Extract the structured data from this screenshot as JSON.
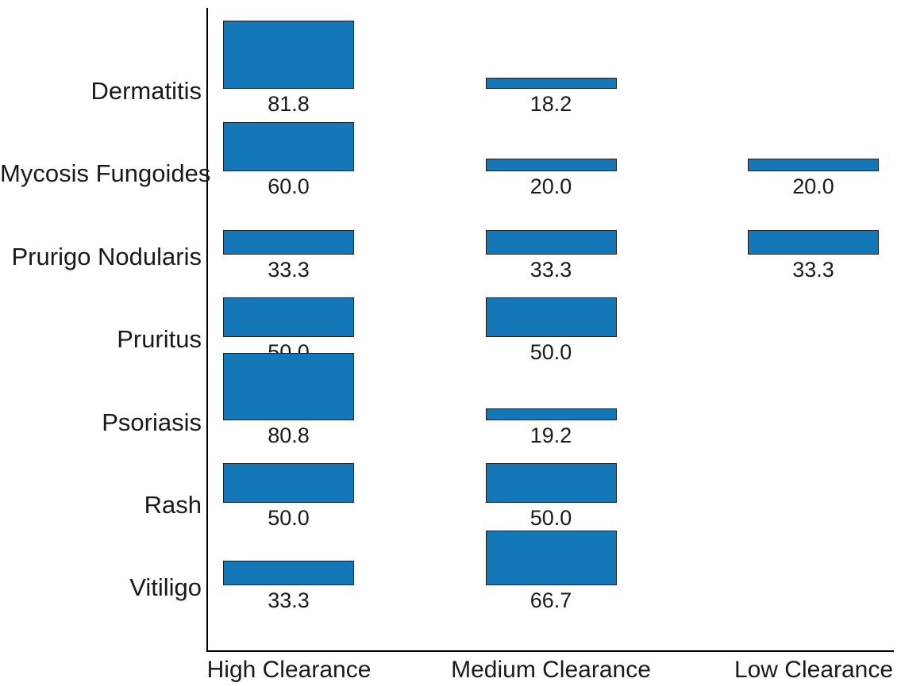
{
  "chart_data": {
    "type": "bar",
    "title": "",
    "orientation": "vertical-bars-in-grid",
    "grid": false,
    "legend": "none",
    "value_decimals": 1,
    "categories": [
      "High Clearance",
      "Medium Clearance",
      "Low Clearance"
    ],
    "rows": [
      {
        "label": "Dermatitis",
        "values": [
          81.8,
          18.2,
          null
        ]
      },
      {
        "label": "Mycosis Fungoides",
        "values": [
          60.0,
          20.0,
          20.0
        ]
      },
      {
        "label": "Prurigo Nodularis",
        "values": [
          33.3,
          33.3,
          33.3
        ]
      },
      {
        "label": "Pruritus",
        "values": [
          50.0,
          50.0,
          null
        ]
      },
      {
        "label": "Psoriasis",
        "values": [
          80.8,
          19.2,
          null
        ]
      },
      {
        "label": "Rash",
        "values": [
          50.0,
          50.0,
          null
        ]
      },
      {
        "label": "Vitiligo",
        "values": [
          33.3,
          66.7,
          null
        ]
      }
    ],
    "colors": {
      "bar_fill": "#1478b8",
      "bar_edge": "#1e1e1e",
      "text": "#1a1a1a",
      "axis": "#000000",
      "background": "#ffffff"
    }
  }
}
